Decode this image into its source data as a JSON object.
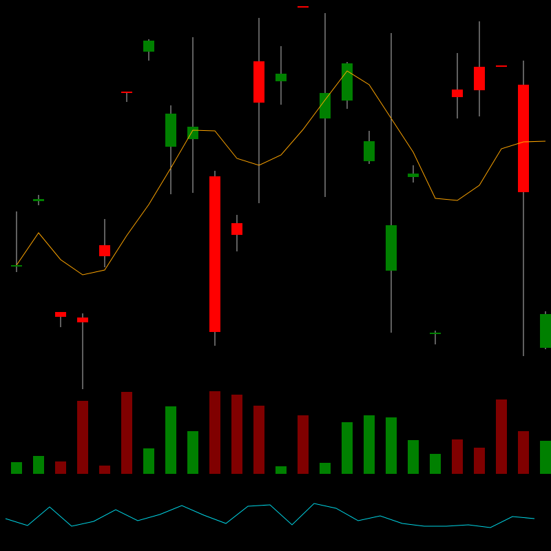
{
  "chart_data": {
    "type": "candlestick",
    "open": [
      21.3,
      30.8,
      14.7,
      13.9,
      24.4,
      46.7,
      52.5,
      38.7,
      39.8,
      34.4,
      27.6,
      51.1,
      48.2,
      59.1,
      42.8,
      45.4,
      36.6,
      20.7,
      34.3,
      11.5,
      47.0,
      50.3,
      50.5,
      47.7,
      9.5
    ],
    "high": [
      29.3,
      31.7,
      14.7,
      14.5,
      28.2,
      46.7,
      54.3,
      44.7,
      54.6,
      35.2,
      28.8,
      57.4,
      53.3,
      59.1,
      58.1,
      51.0,
      41.0,
      55.2,
      36.0,
      12.0,
      52.3,
      56.9,
      50.5,
      51.2,
      14.8
    ],
    "low": [
      20.5,
      30.2,
      12.5,
      3.5,
      21.2,
      45.2,
      51.2,
      31.8,
      32.0,
      9.8,
      23.5,
      30.5,
      44.8,
      59.0,
      31.4,
      44.2,
      36.2,
      11.7,
      33.5,
      10.0,
      42.8,
      43.1,
      50.4,
      8.3,
      9.3
    ],
    "close": [
      21.5,
      31.1,
      14.0,
      13.2,
      22.8,
      46.5,
      54.1,
      43.5,
      41.6,
      11.8,
      25.9,
      45.1,
      49.3,
      59.0,
      46.5,
      50.8,
      39.5,
      27.3,
      34.8,
      11.7,
      45.9,
      46.9,
      50.4,
      32.1,
      14.4
    ],
    "ma": [
      21.5,
      26.2,
      22.3,
      20.1,
      20.8,
      25.8,
      30.3,
      35.6,
      41.1,
      41.0,
      37.0,
      36.0,
      37.5,
      41.2,
      45.5,
      49.7,
      47.7,
      42.8,
      37.9,
      31.2,
      30.9,
      33.1,
      38.4,
      39.4,
      39.5
    ],
    "volume": [
      17,
      26,
      18,
      106,
      12,
      119,
      37,
      98,
      62,
      120,
      115,
      99,
      11,
      85,
      16,
      75,
      85,
      82,
      49,
      29,
      50,
      38,
      108,
      62,
      48
    ],
    "indicator": [
      27,
      17,
      44,
      16,
      23,
      40,
      24,
      33,
      46,
      32,
      20,
      45,
      47,
      18,
      49,
      42,
      24,
      31,
      20,
      16,
      16,
      18,
      14,
      30,
      27
    ],
    "ylim": [
      0,
      60
    ],
    "volume_ylim": [
      0,
      128
    ],
    "indicator_ylim": [
      0,
      60
    ],
    "up_color": "#008000",
    "down_color": "#ff0000",
    "volume_down_color": "#800000",
    "wick_color": "#c0c0c0",
    "ma_color": "#ffa500",
    "indicator_color": "#00d8e8"
  }
}
